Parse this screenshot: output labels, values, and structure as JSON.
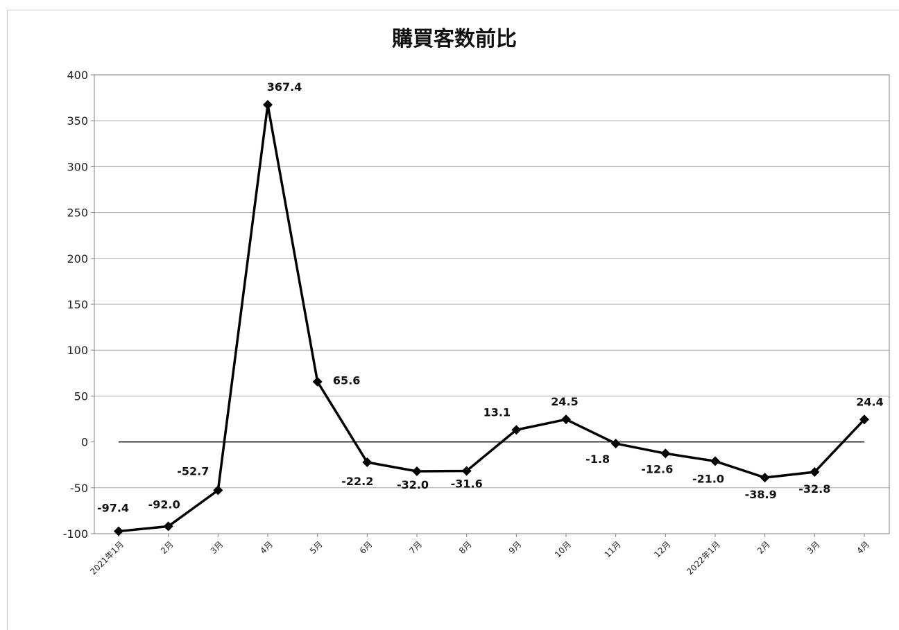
{
  "chart_data": {
    "type": "line",
    "title": "購買客数前比",
    "xlabel": "",
    "ylabel": "",
    "categories": [
      "2021年1月",
      "2月",
      "3月",
      "4月",
      "5月",
      "6月",
      "7月",
      "8月",
      "9月",
      "10月",
      "11月",
      "12月",
      "2022年1月",
      "2月",
      "3月",
      "4月"
    ],
    "series": [
      {
        "values": [
          -97.4,
          -92.0,
          -52.7,
          367.4,
          65.6,
          -22.2,
          -32.0,
          -31.6,
          13.1,
          24.5,
          -1.8,
          -12.6,
          -21.0,
          -38.9,
          -32.8,
          24.4
        ],
        "labels": [
          "-97.4",
          "-92.0",
          "-52.7",
          "367.4",
          "65.6",
          "-22.2",
          "-32.0",
          "-31.6",
          "13.1",
          "24.5",
          "-1.8",
          "-12.6",
          "-21.0",
          "-38.9",
          "-32.8",
          "24.4"
        ],
        "color": "#000000",
        "marker": "diamond"
      }
    ],
    "ylim": [
      -100,
      400
    ],
    "yticks": [
      "-100",
      "-50",
      "0",
      "50",
      "100",
      "150",
      "200",
      "250",
      "300",
      "350",
      "400"
    ],
    "grid": true,
    "legend": "none"
  }
}
